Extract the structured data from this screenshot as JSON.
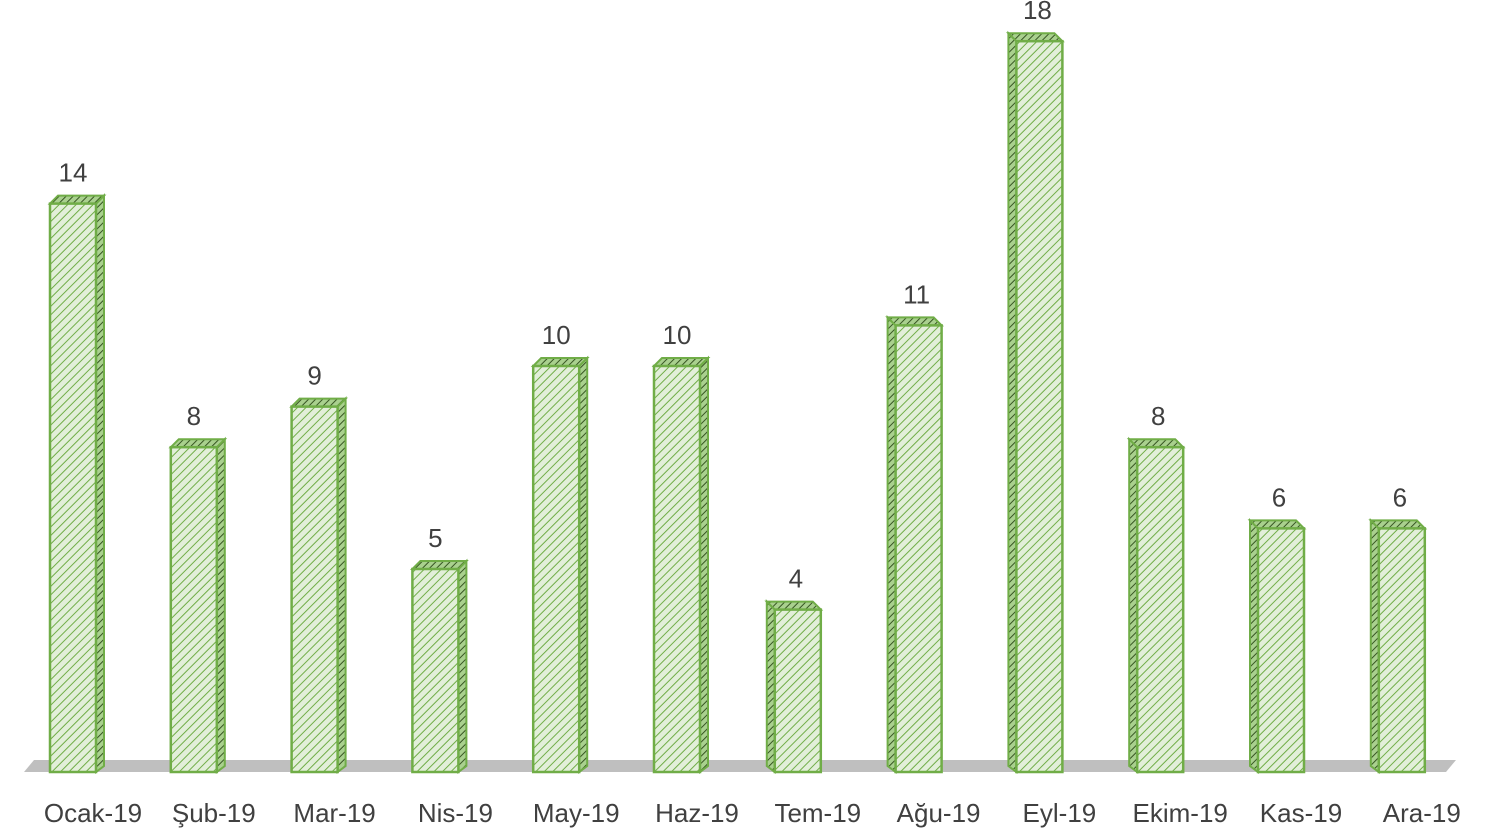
{
  "chart_data": {
    "type": "bar",
    "title": "",
    "xlabel": "",
    "ylabel": "",
    "categories": [
      "Ocak-19",
      "Şub-19",
      "Mar-19",
      "Nis-19",
      "May-19",
      "Haz-19",
      "Tem-19",
      "Ağu-19",
      "Eyl-19",
      "Ekim-19",
      "Kas-19",
      "Ara-19"
    ],
    "values": [
      14,
      8,
      9,
      5,
      10,
      10,
      4,
      11,
      18,
      8,
      6,
      6
    ],
    "ylim": [
      0,
      18
    ],
    "grid": false,
    "legend": "none",
    "data_labels": true,
    "style": "3d-column-hatched",
    "colors": {
      "fill": "#e2efd9",
      "hatch": "#70ad47",
      "edge": "#70ad47",
      "floor": "#bfbfbf",
      "label": "#404040"
    }
  }
}
